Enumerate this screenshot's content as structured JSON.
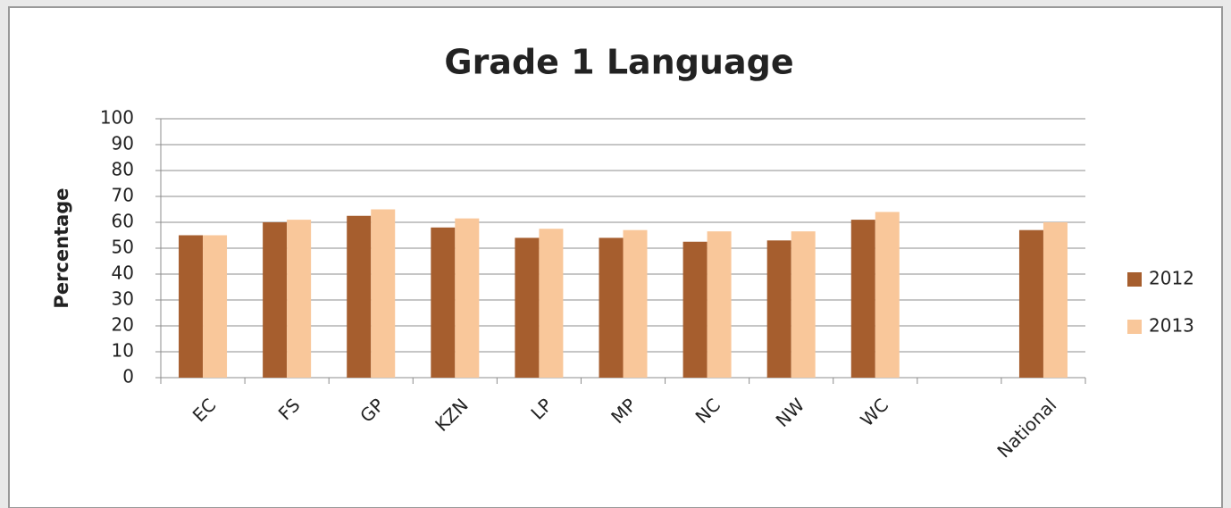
{
  "chart_data": {
    "type": "bar",
    "title": "Grade 1 Language",
    "y_label": "Percentage",
    "categories": [
      "EC",
      "FS",
      "GP",
      "KZN",
      "LP",
      "MP",
      "NC",
      "NW",
      "WC",
      null,
      "National"
    ],
    "series": [
      {
        "name": "2012",
        "color": "#a65e2e",
        "values": [
          55,
          60,
          62.5,
          58,
          54,
          54,
          52.5,
          53,
          61,
          null,
          57
        ]
      },
      {
        "name": "2013",
        "color": "#f9c79a",
        "values": [
          55,
          61,
          65,
          61.5,
          57.5,
          57,
          56.5,
          56.5,
          64,
          null,
          60
        ]
      }
    ],
    "ylim": [
      0,
      100
    ],
    "yticks": [
      0,
      10,
      20,
      30,
      40,
      50,
      60,
      70,
      80,
      90,
      100
    ],
    "grid": true,
    "legend": "right"
  }
}
